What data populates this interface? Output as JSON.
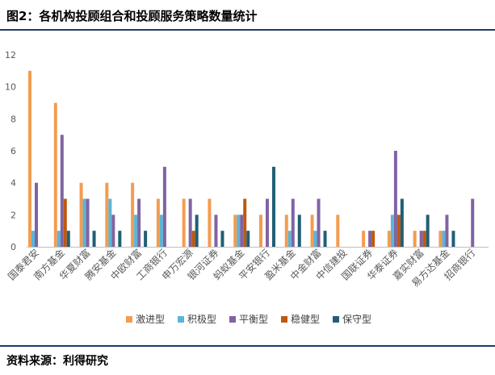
{
  "header": {
    "title": "图2：各机构投顾组合和投顾服务策略数量统计"
  },
  "footer": {
    "source": "资料来源：利得研究"
  },
  "chart_data": {
    "type": "bar",
    "ylim": [
      0,
      12
    ],
    "yticks": [
      0,
      2,
      4,
      6,
      8,
      10,
      12
    ],
    "grid": false,
    "legend_position": "bottom",
    "categories": [
      "国泰君安",
      "南方基金",
      "华夏财富",
      "腾安基金",
      "中欧财富",
      "工商银行",
      "申万宏源",
      "银河证券",
      "蚂蚁基金",
      "平安银行",
      "盈米基金",
      "中金财富",
      "中信建投",
      "国联证券",
      "华泰证券",
      "嘉实财富",
      "易方达基金",
      "招商银行"
    ],
    "series": [
      {
        "name": "激进型",
        "color": "#f39c51",
        "values": [
          11,
          9,
          4,
          4,
          4,
          3,
          3,
          3,
          2,
          2,
          2,
          2,
          2,
          1,
          1,
          1,
          1,
          0
        ]
      },
      {
        "name": "积极型",
        "color": "#5bb5d6",
        "values": [
          1,
          1,
          3,
          3,
          2,
          2,
          0,
          0,
          2,
          0,
          1,
          1,
          0,
          0,
          2,
          0,
          1,
          0
        ]
      },
      {
        "name": "平衡型",
        "color": "#8064a2",
        "values": [
          4,
          7,
          3,
          2,
          3,
          5,
          3,
          2,
          2,
          3,
          3,
          3,
          0,
          1,
          6,
          1,
          2,
          3
        ]
      },
      {
        "name": "稳健型",
        "color": "#c0580f",
        "values": [
          0,
          3,
          0,
          0,
          0,
          0,
          1,
          0,
          3,
          0,
          0,
          0,
          0,
          1,
          2,
          1,
          0,
          0
        ]
      },
      {
        "name": "保守型",
        "color": "#215f74",
        "values": [
          0,
          1,
          1,
          1,
          1,
          0,
          2,
          1,
          1,
          5,
          2,
          1,
          0,
          0,
          3,
          2,
          1,
          0
        ]
      }
    ]
  }
}
